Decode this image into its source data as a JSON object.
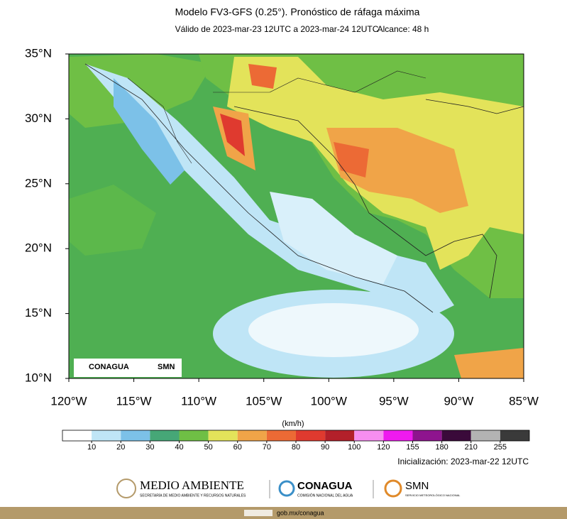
{
  "header": {
    "title": "Modelo FV3-GFS (0.25°). Pronóstico de ráfaga máxima",
    "valid": "Válido de 2023-mar-23 12UTC a 2023-mar-24 12UTC",
    "range": "Alcance: 48 h"
  },
  "map": {
    "xlim": [
      -120,
      -85
    ],
    "ylim": [
      10,
      35
    ],
    "xticks": [
      {
        "value": -120,
        "label": "120°W"
      },
      {
        "value": -115,
        "label": "115°W"
      },
      {
        "value": -110,
        "label": "110°W"
      },
      {
        "value": -105,
        "label": "105°W"
      },
      {
        "value": -100,
        "label": "100°W"
      },
      {
        "value": -95,
        "label": "95°W"
      },
      {
        "value": -90,
        "label": "90°W"
      },
      {
        "value": -85,
        "label": "85°W"
      }
    ],
    "yticks": [
      {
        "value": 10,
        "label": "10°N"
      },
      {
        "value": 15,
        "label": "15°N"
      },
      {
        "value": 20,
        "label": "20°N"
      },
      {
        "value": 25,
        "label": "25°N"
      },
      {
        "value": 30,
        "label": "30°N"
      },
      {
        "value": 35,
        "label": "35°N"
      }
    ],
    "logos": [
      "CONAGUA",
      "SMN"
    ]
  },
  "colorbar": {
    "unit": "(km/h)",
    "bounds": [
      10,
      20,
      30,
      40,
      50,
      60,
      70,
      80,
      90,
      100,
      120,
      155,
      180,
      210,
      255
    ],
    "colors": [
      "#ffffff",
      "#bfe5f6",
      "#7cc1e8",
      "#46a777",
      "#6fbf45",
      "#e3e35a",
      "#f0a448",
      "#ec6a35",
      "#df3a2f",
      "#b3202a",
      "#f78ef0",
      "#ef1aef",
      "#8e148e",
      "#3a0a3a",
      "#b3b3b3",
      "#3a3a3a"
    ]
  },
  "footer": {
    "init": "Inicialización: 2023-mar-22 12UTC",
    "logos": [
      {
        "name": "MEDIO AMBIENTE",
        "sub": "SECRETARÍA DE MEDIO AMBIENTE Y RECURSOS NATURALES"
      },
      {
        "name": "CONAGUA",
        "sub": "COMISIÓN NACIONAL DEL AGUA"
      },
      {
        "name": "SMN",
        "sub": "SERVICIO METEOROLÓGICO NACIONAL"
      }
    ],
    "link": "gob.mx/conagua"
  }
}
